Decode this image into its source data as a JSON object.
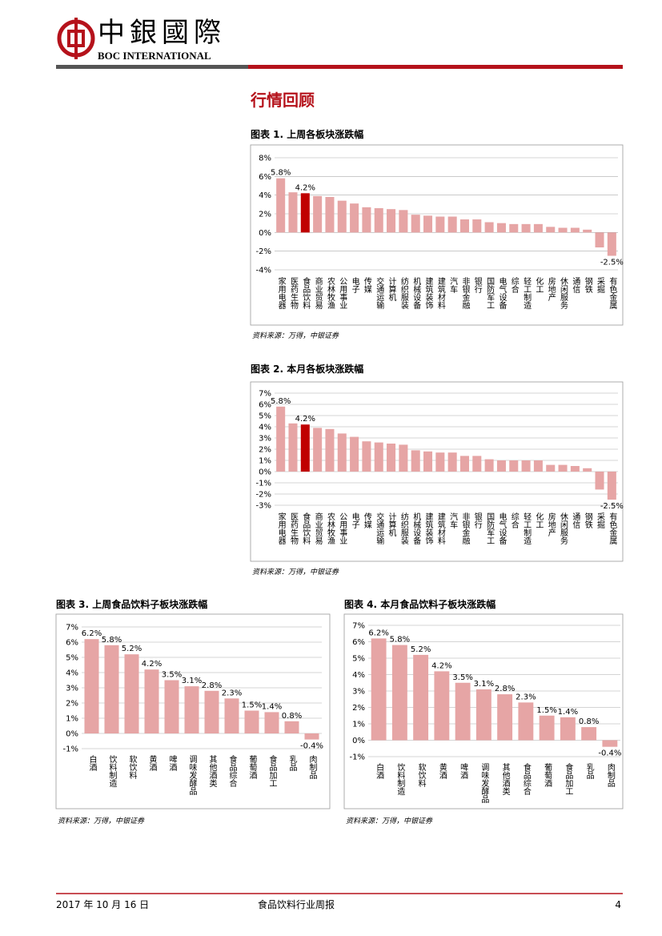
{
  "header": {
    "logo_cn": "中銀國際",
    "logo_en": "BOC INTERNATIONAL"
  },
  "section_title": "行情回顾",
  "footer": {
    "date": "2017 年 10 月 16 日",
    "report": "食品饮料行业周报",
    "page": "4"
  },
  "chart_data": [
    {
      "type": "bar",
      "title": "图表 1. 上周各板块涨跌幅",
      "source": "资料来源：万得，中银证券",
      "categories": [
        "家用电器",
        "医药生物",
        "食品饮料",
        "商业贸易",
        "农林牧渔",
        "公用事业",
        "电子",
        "传媒",
        "交通运输",
        "计算机",
        "纺织服装",
        "机械设备",
        "建筑装饰",
        "建筑材料",
        "汽车",
        "非银金融",
        "银行",
        "国防军工",
        "电气设备",
        "综合",
        "轻工制造",
        "化工",
        "房地产",
        "休闲服务",
        "通信",
        "钢铁",
        "采掘",
        "有色金属"
      ],
      "values": [
        5.8,
        4.3,
        4.2,
        3.9,
        3.8,
        3.4,
        3.1,
        2.7,
        2.6,
        2.5,
        2.4,
        1.9,
        1.8,
        1.7,
        1.7,
        1.4,
        1.4,
        1.1,
        1.0,
        0.9,
        0.9,
        0.9,
        0.6,
        0.5,
        0.5,
        0.3,
        -1.6,
        -2.5
      ],
      "value_labels": [
        "5.8%",
        null,
        "4.2%",
        null,
        null,
        null,
        null,
        null,
        null,
        null,
        null,
        null,
        null,
        null,
        null,
        null,
        null,
        null,
        null,
        null,
        null,
        null,
        null,
        null,
        null,
        null,
        null,
        "-2.5%"
      ],
      "colors": [
        "#e6a5a5",
        "#e6a5a5",
        "#c00000",
        "#e6a5a5",
        "#e6a5a5",
        "#e6a5a5",
        "#e6a5a5",
        "#e6a5a5",
        "#e6a5a5",
        "#e6a5a5",
        "#e6a5a5",
        "#e6a5a5",
        "#e6a5a5",
        "#e6a5a5",
        "#e6a5a5",
        "#e6a5a5",
        "#e6a5a5",
        "#e6a5a5",
        "#e6a5a5",
        "#e6a5a5",
        "#e6a5a5",
        "#e6a5a5",
        "#e6a5a5",
        "#e6a5a5",
        "#e6a5a5",
        "#e6a5a5",
        "#e6a5a5",
        "#e6a5a5"
      ],
      "ylim": [
        -4,
        8
      ],
      "yticks": [
        {
          "value": -4,
          "label": "-4%"
        },
        {
          "value": -2,
          "label": "-2%"
        },
        {
          "value": 0,
          "label": "0%"
        },
        {
          "value": 2,
          "label": "2%"
        },
        {
          "value": 4,
          "label": "4%"
        },
        {
          "value": 6,
          "label": "6%"
        },
        {
          "value": 8,
          "label": "8%"
        }
      ],
      "grid": true
    },
    {
      "type": "bar",
      "title": "图表 2. 本月各板块涨跌幅",
      "source": "资料来源：万得，中银证券",
      "categories": [
        "家用电器",
        "医药生物",
        "食品饮料",
        "商业贸易",
        "农林牧渔",
        "公用事业",
        "电子",
        "传媒",
        "交通运输",
        "计算机",
        "纺织服装",
        "机械设备",
        "建筑装饰",
        "建筑材料",
        "汽车",
        "非银金融",
        "银行",
        "国防军工",
        "电气设备",
        "综合",
        "轻工制造",
        "化工",
        "房地产",
        "休闲服务",
        "通信",
        "钢铁",
        "采掘",
        "有色金属"
      ],
      "values": [
        5.8,
        4.3,
        4.2,
        3.9,
        3.8,
        3.4,
        3.1,
        2.7,
        2.6,
        2.5,
        2.4,
        1.9,
        1.8,
        1.7,
        1.7,
        1.4,
        1.4,
        1.1,
        1.0,
        1.0,
        1.0,
        1.0,
        0.6,
        0.6,
        0.5,
        0.3,
        -1.6,
        -2.5
      ],
      "value_labels": [
        "5.8%",
        null,
        "4.2%",
        null,
        null,
        null,
        null,
        null,
        null,
        null,
        null,
        null,
        null,
        null,
        null,
        null,
        null,
        null,
        null,
        null,
        null,
        null,
        null,
        null,
        null,
        null,
        null,
        "-2.5%"
      ],
      "colors": [
        "#e6a5a5",
        "#e6a5a5",
        "#c00000",
        "#e6a5a5",
        "#e6a5a5",
        "#e6a5a5",
        "#e6a5a5",
        "#e6a5a5",
        "#e6a5a5",
        "#e6a5a5",
        "#e6a5a5",
        "#e6a5a5",
        "#e6a5a5",
        "#e6a5a5",
        "#e6a5a5",
        "#e6a5a5",
        "#e6a5a5",
        "#e6a5a5",
        "#e6a5a5",
        "#e6a5a5",
        "#e6a5a5",
        "#e6a5a5",
        "#e6a5a5",
        "#e6a5a5",
        "#e6a5a5",
        "#e6a5a5",
        "#e6a5a5",
        "#e6a5a5"
      ],
      "ylim": [
        -3,
        7
      ],
      "yticks": [
        {
          "value": -3,
          "label": "-3%"
        },
        {
          "value": -2,
          "label": "-2%"
        },
        {
          "value": -1,
          "label": "-1%"
        },
        {
          "value": 0,
          "label": "0%"
        },
        {
          "value": 1,
          "label": "1%"
        },
        {
          "value": 2,
          "label": "2%"
        },
        {
          "value": 3,
          "label": "3%"
        },
        {
          "value": 4,
          "label": "4%"
        },
        {
          "value": 5,
          "label": "5%"
        },
        {
          "value": 6,
          "label": "6%"
        },
        {
          "value": 7,
          "label": "7%"
        }
      ],
      "grid": true
    },
    {
      "type": "bar",
      "title": "图表 3. 上周食品饮料子板块涨跌幅",
      "source": "资料来源：万得，中银证券",
      "categories": [
        "白酒",
        "饮料制造",
        "软饮料",
        "黄酒",
        "啤酒",
        "调味发酵品",
        "其他酒类",
        "食品综合",
        "葡萄酒",
        "食品加工",
        "乳品",
        "肉制品"
      ],
      "values": [
        6.2,
        5.8,
        5.2,
        4.2,
        3.5,
        3.1,
        2.8,
        2.3,
        1.5,
        1.4,
        0.8,
        -0.4
      ],
      "value_labels": [
        "6.2%",
        "5.8%",
        "5.2%",
        "4.2%",
        "3.5%",
        "3.1%",
        "2.8%",
        "2.3%",
        "1.5%",
        "1.4%",
        "0.8%",
        "-0.4%"
      ],
      "color": "#e6a5a5",
      "ylim": [
        -1,
        7
      ],
      "yticks": [
        {
          "value": -1,
          "label": "-1%"
        },
        {
          "value": 0,
          "label": "0%"
        },
        {
          "value": 1,
          "label": "1%"
        },
        {
          "value": 2,
          "label": "2%"
        },
        {
          "value": 3,
          "label": "3%"
        },
        {
          "value": 4,
          "label": "4%"
        },
        {
          "value": 5,
          "label": "5%"
        },
        {
          "value": 6,
          "label": "6%"
        },
        {
          "value": 7,
          "label": "7%"
        }
      ],
      "grid": true
    },
    {
      "type": "bar",
      "title": "图表 4. 本月食品饮料子板块涨跌幅",
      "source": "资料来源：万得，中银证券",
      "categories": [
        "白酒",
        "饮料制造",
        "软饮料",
        "黄酒",
        "啤酒",
        "调味发酵品",
        "其他酒类",
        "食品综合",
        "葡萄酒",
        "食品加工",
        "乳品",
        "肉制品"
      ],
      "values": [
        6.2,
        5.8,
        5.2,
        4.2,
        3.5,
        3.1,
        2.8,
        2.3,
        1.5,
        1.4,
        0.8,
        -0.4
      ],
      "value_labels": [
        "6.2%",
        "5.8%",
        "5.2%",
        "4.2%",
        "3.5%",
        "3.1%",
        "2.8%",
        "2.3%",
        "1.5%",
        "1.4%",
        "0.8%",
        "-0.4%"
      ],
      "color": "#e6a5a5",
      "ylim": [
        -1,
        7
      ],
      "yticks": [
        {
          "value": -1,
          "label": "-1%"
        },
        {
          "value": 0,
          "label": "0%"
        },
        {
          "value": 1,
          "label": "1%"
        },
        {
          "value": 2,
          "label": "2%"
        },
        {
          "value": 3,
          "label": "3%"
        },
        {
          "value": 4,
          "label": "4%"
        },
        {
          "value": 5,
          "label": "5%"
        },
        {
          "value": 6,
          "label": "6%"
        },
        {
          "value": 7,
          "label": "7%"
        }
      ],
      "grid": true
    }
  ]
}
